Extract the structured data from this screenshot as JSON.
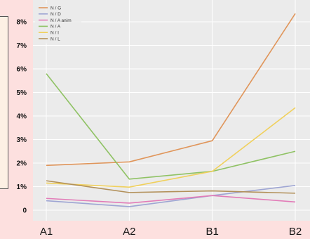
{
  "chart_data": {
    "type": "line",
    "title": "",
    "xlabel": "",
    "ylabel": "",
    "categories": [
      "A1",
      "A2",
      "B1",
      "B2"
    ],
    "ylim": [
      -0.2,
      8.5
    ],
    "yticks": [
      0,
      1,
      2,
      3,
      4,
      5,
      6,
      7,
      8
    ],
    "ytick_labels": [
      "0",
      "1%",
      "2%",
      "3%",
      "4%",
      "5%",
      "6%",
      "7%",
      "8%"
    ],
    "grid": true,
    "legend_position": "top-left",
    "series": [
      {
        "name": "N / G",
        "color": "#e0955a",
        "values": [
          1.9,
          2.05,
          2.95,
          8.35
        ]
      },
      {
        "name": "N / D",
        "color": "#9ea5d3",
        "values": [
          0.4,
          0.15,
          0.62,
          1.05
        ]
      },
      {
        "name": "N / A anim",
        "color": "#e27cb8",
        "values": [
          0.5,
          0.3,
          0.62,
          0.35
        ]
      },
      {
        "name": "N / A",
        "color": "#8fc264",
        "values": [
          5.8,
          1.32,
          1.65,
          2.5
        ]
      },
      {
        "name": "N / I",
        "color": "#f0d05c",
        "values": [
          1.15,
          0.98,
          1.65,
          4.35
        ]
      },
      {
        "name": "N / L",
        "color": "#b29059",
        "values": [
          1.25,
          0.75,
          0.82,
          0.72
        ]
      }
    ]
  }
}
